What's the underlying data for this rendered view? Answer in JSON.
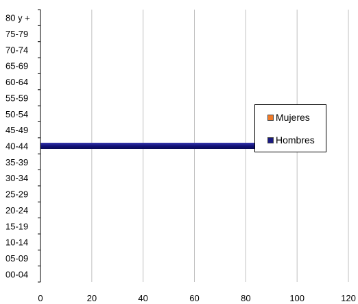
{
  "chart_data": {
    "type": "bar",
    "orientation": "horizontal",
    "categories": [
      "00-04",
      "05-09",
      "10-14",
      "15-19",
      "20-24",
      "25-29",
      "30-34",
      "35-39",
      "40-44",
      "45-49",
      "50-54",
      "55-59",
      "60-64",
      "65-69",
      "70-74",
      "75-79",
      "80 y +"
    ],
    "series": [
      {
        "name": "Mujeres",
        "color": "#f07a28",
        "values": [
          0,
          0,
          0,
          0,
          0,
          0,
          0,
          0,
          0,
          0,
          0,
          0,
          0,
          0,
          0,
          0,
          0
        ]
      },
      {
        "name": "Hombres",
        "color": "#1a1a80",
        "values": [
          0,
          0,
          0,
          0,
          0,
          0,
          0,
          0,
          100,
          0,
          0,
          0,
          0,
          0,
          0,
          0,
          0
        ]
      }
    ],
    "xlim": [
      0,
      120
    ],
    "xticks": [
      0,
      20,
      40,
      60,
      80,
      100,
      120
    ],
    "grid": "vertical",
    "legend_position": "right",
    "title": "",
    "xlabel": "",
    "ylabel": ""
  }
}
